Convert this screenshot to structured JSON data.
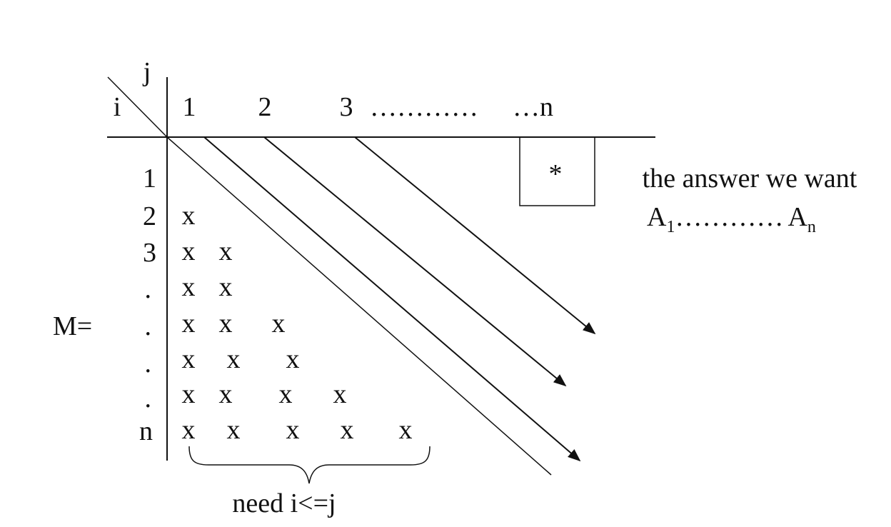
{
  "matrix": {
    "label": "M=",
    "col_header_var": "j",
    "row_header_var": "i",
    "col_labels": [
      "1",
      "2",
      "3",
      "…………",
      "…n"
    ],
    "row_labels": [
      "1",
      "2",
      "3",
      ".",
      ".",
      ".",
      ".",
      "n"
    ],
    "cell_mark": "x",
    "rows": [
      {
        "row": "1",
        "marks": 0
      },
      {
        "row": "2",
        "marks": 1
      },
      {
        "row": "3",
        "marks": 2
      },
      {
        "row": ".",
        "marks": 2
      },
      {
        "row": ".",
        "marks": 3
      },
      {
        "row": ".",
        "marks": 3
      },
      {
        "row": ".",
        "marks": 4
      },
      {
        "row": "n",
        "marks": 5
      }
    ],
    "answer_marker": "*",
    "brace_label": "need i<=j"
  },
  "answer": {
    "caption": "the answer we want",
    "product": {
      "first_base": "A",
      "first_sub": "1",
      "dots": "…………",
      "last_base": "A",
      "last_sub": "n"
    }
  }
}
